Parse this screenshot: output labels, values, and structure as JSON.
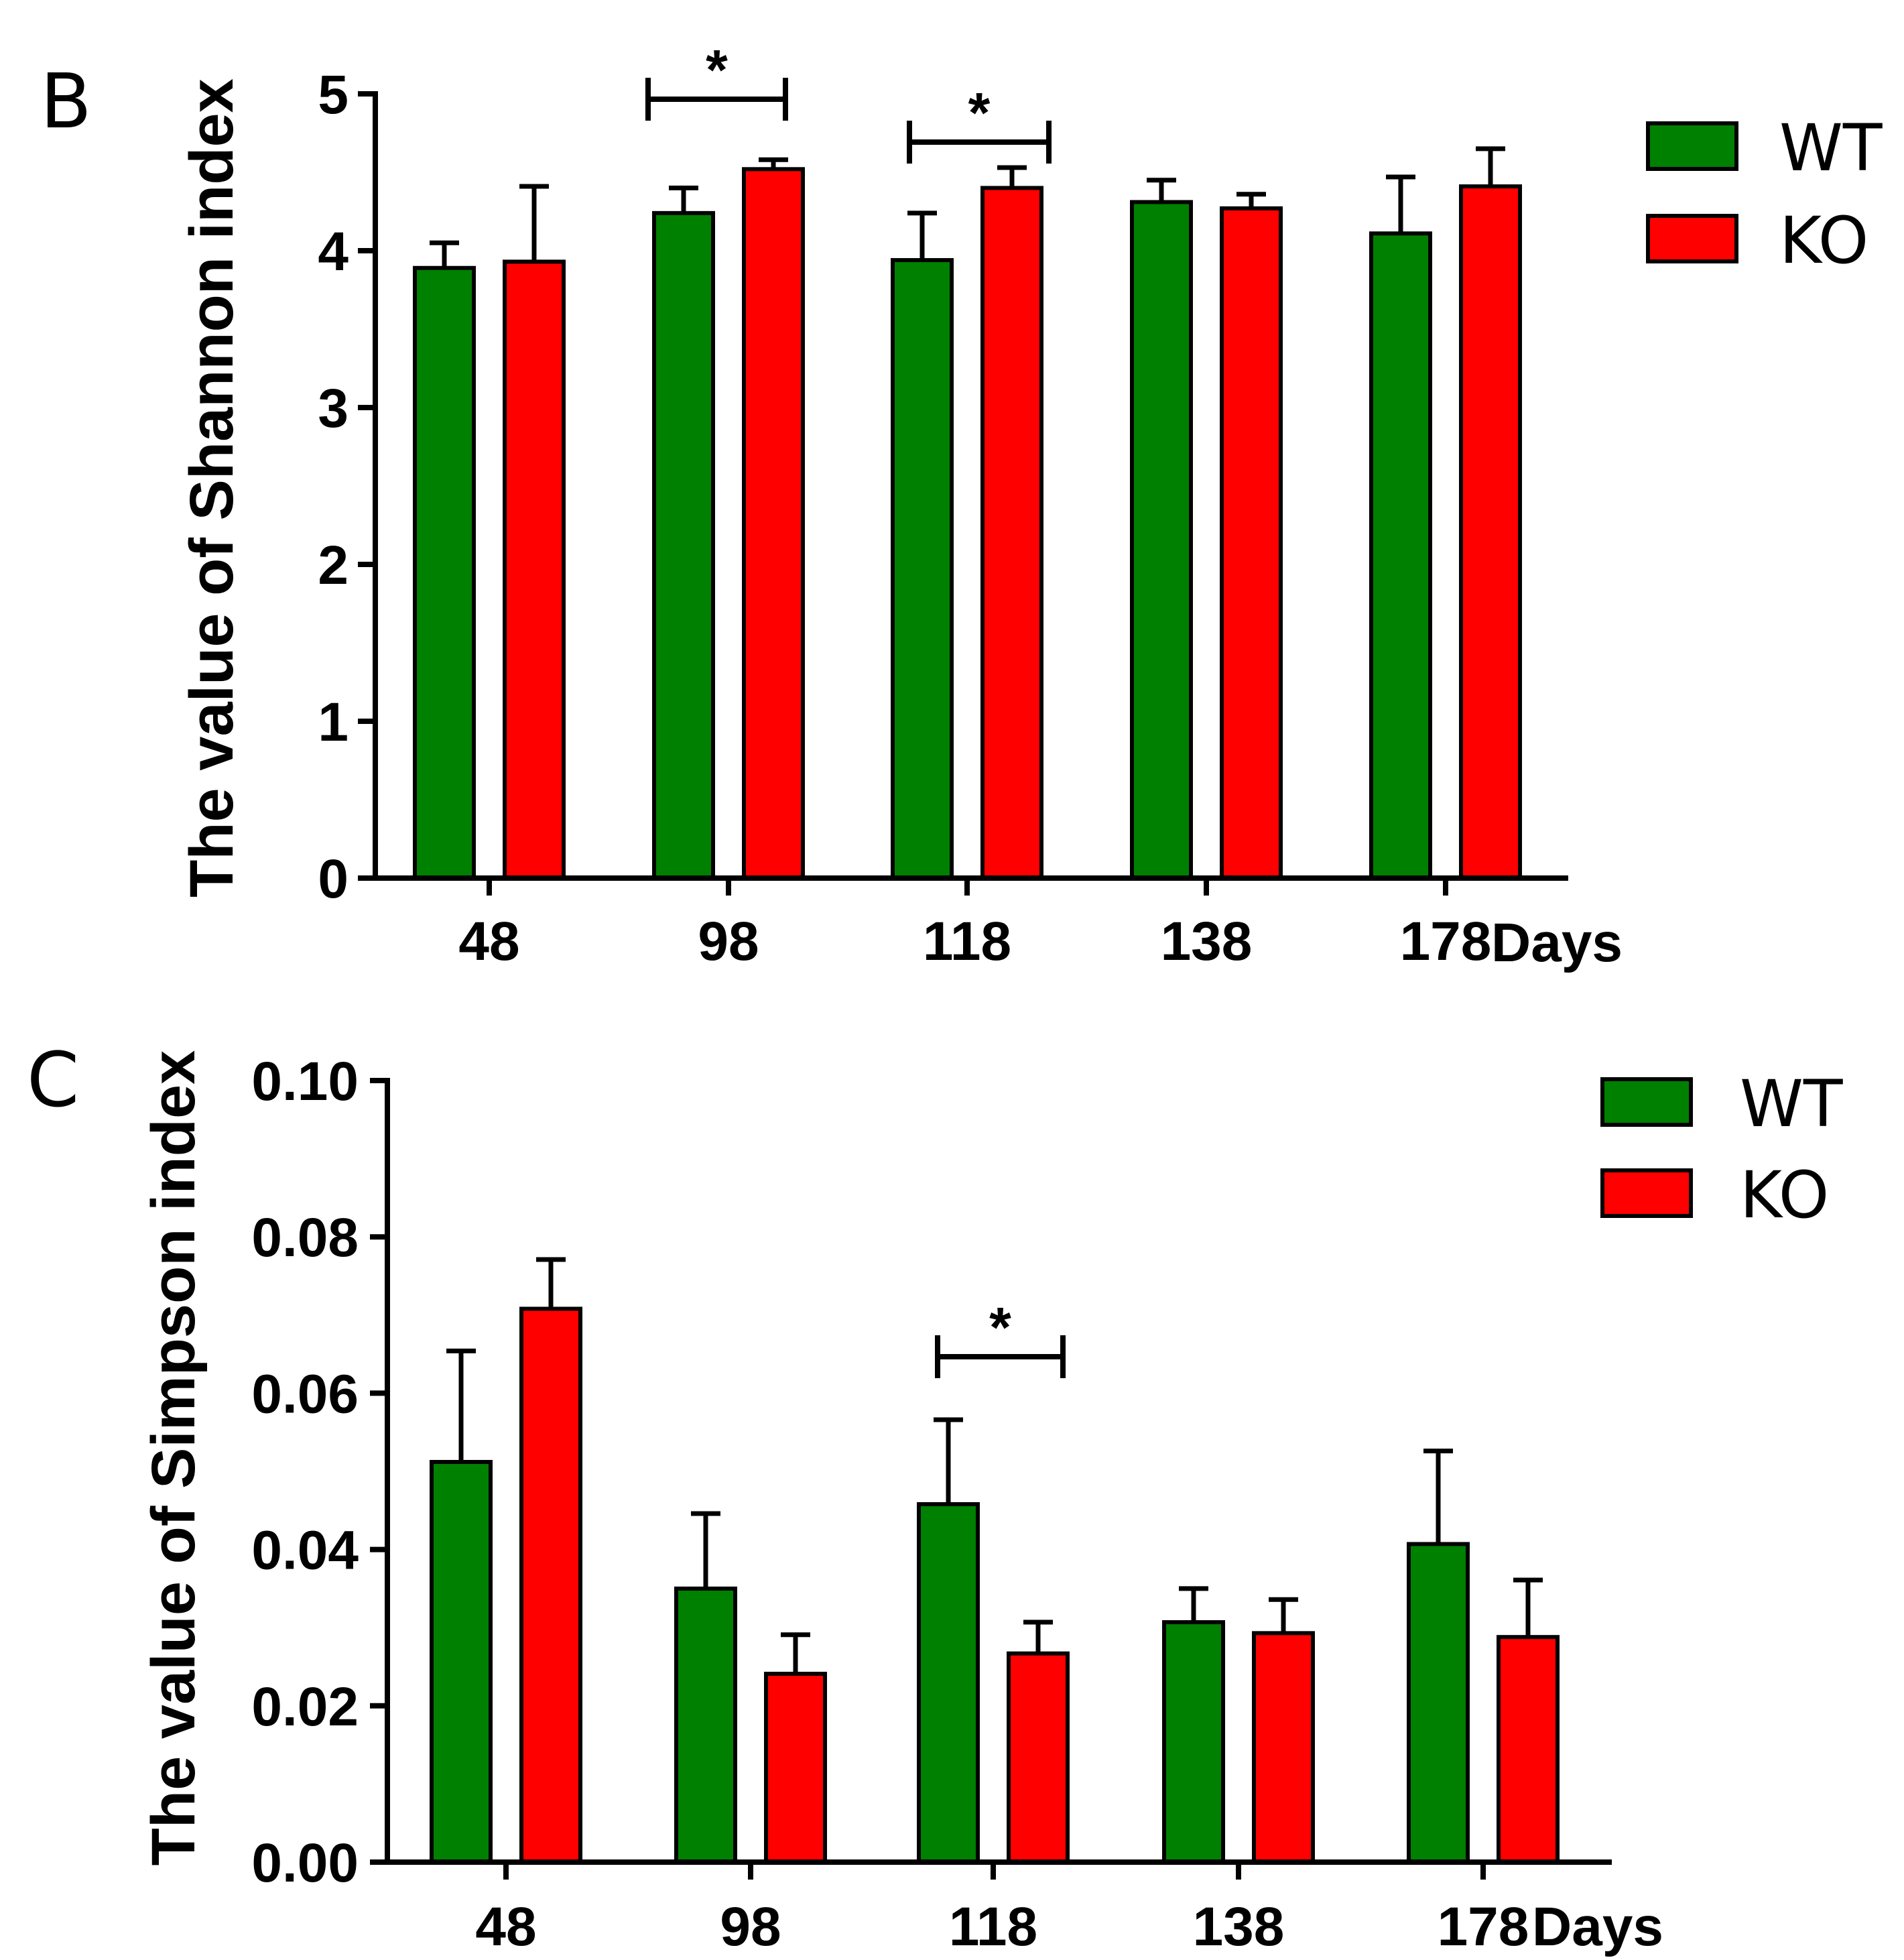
{
  "chart_data": [
    {
      "panel": "B",
      "type": "bar",
      "categories": [
        "48",
        "98",
        "118",
        "138",
        "178"
      ],
      "x_unit_label": "Days",
      "ylabel": "The value of Shannon index",
      "ylim": [
        0,
        5
      ],
      "yticks": [
        "0",
        "1",
        "2",
        "3",
        "4",
        "5"
      ],
      "series": [
        {
          "name": "WT",
          "color": "#008000",
          "values": [
            3.89,
            4.24,
            3.94,
            4.31,
            4.11
          ],
          "errors": [
            0.16,
            0.16,
            0.3,
            0.14,
            0.36
          ]
        },
        {
          "name": "KO",
          "color": "#ff0000",
          "values": [
            3.93,
            4.52,
            4.4,
            4.27,
            4.41
          ],
          "errors": [
            0.48,
            0.06,
            0.13,
            0.09,
            0.24
          ]
        }
      ],
      "significance": [
        {
          "category_index": 1,
          "label": "*"
        },
        {
          "category_index": 2,
          "label": "*"
        }
      ],
      "legend": {
        "position": "top-right",
        "entries": [
          "WT",
          "KO"
        ]
      }
    },
    {
      "panel": "C",
      "type": "bar",
      "categories": [
        "48",
        "98",
        "118",
        "138",
        "178"
      ],
      "x_unit_label": "Days",
      "ylabel": "The value of Simpson index",
      "ylim": [
        0,
        0.1
      ],
      "yticks": [
        "0.00",
        "0.02",
        "0.04",
        "0.06",
        "0.08",
        "0.10"
      ],
      "series": [
        {
          "name": "WT",
          "color": "#008000",
          "values": [
            0.0512,
            0.035,
            0.0458,
            0.0307,
            0.0407
          ],
          "errors": [
            0.0142,
            0.0096,
            0.0108,
            0.0043,
            0.0119
          ]
        },
        {
          "name": "KO",
          "color": "#ff0000",
          "values": [
            0.0708,
            0.0241,
            0.0267,
            0.0293,
            0.0288
          ],
          "errors": [
            0.0063,
            0.005,
            0.004,
            0.0043,
            0.0073
          ]
        }
      ],
      "significance": [
        {
          "category_index": 2,
          "label": "*"
        }
      ],
      "legend": {
        "position": "top-right",
        "entries": [
          "WT",
          "KO"
        ]
      }
    }
  ]
}
